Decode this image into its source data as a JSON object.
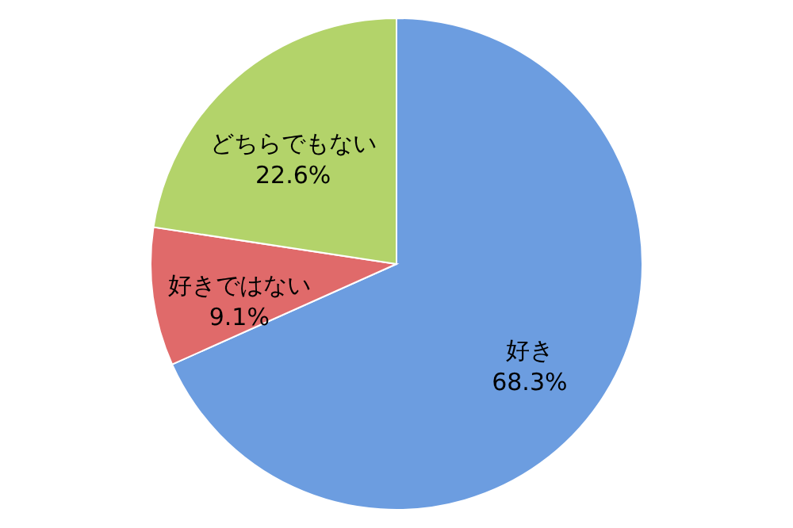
{
  "chart_data": {
    "type": "pie",
    "categories": [
      "好き",
      "好きではない",
      "どちらでもない"
    ],
    "values": [
      68.3,
      9.1,
      22.6
    ],
    "value_labels": [
      "68.3%",
      "9.1%",
      "22.6%"
    ],
    "colors": [
      "#6c9de0",
      "#e06a6a",
      "#b3d36a"
    ],
    "legend": false
  }
}
